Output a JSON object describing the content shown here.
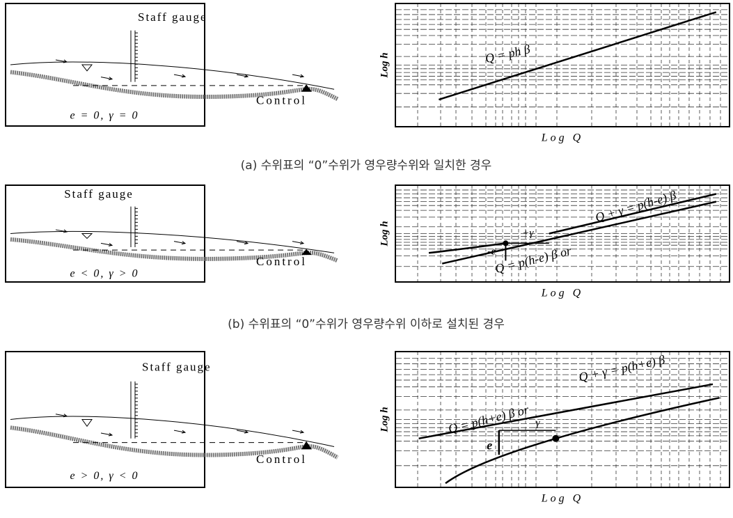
{
  "panels": [
    {
      "staff_label": "Staff gauge",
      "control_label": "Control",
      "condition": "e = 0,  γ = 0",
      "y_axis_label": "Log h",
      "x_axis_label": "Log Q",
      "formula": "Q = ph β",
      "caption": "(a) 수위표의 “0”수위가 영우량수위와 일치한 경우"
    },
    {
      "staff_label": "Staff gauge",
      "control_label": "Control",
      "condition": "e < 0,  γ > 0",
      "y_axis_label": "Log h",
      "x_axis_label": "Log Q",
      "formula_lower": "Q = p(h-e) β or",
      "formula_upper": "Q + γ = p(h-e) β",
      "e_label": "-e",
      "gamma_label": "+γ",
      "caption": "(b) 수위표의 “0”수위가 영우량수위 이하로 설치된 경우"
    },
    {
      "staff_label": "Staff gauge",
      "control_label": "Control",
      "condition": "e > 0,  γ < 0",
      "y_axis_label": "Log h",
      "x_axis_label": "Log Q",
      "formula_lower": "Q = p(h+e) β or",
      "formula_upper": "Q + γ = p(h+e) β",
      "e_label": "e",
      "gamma_label": "γ"
    }
  ]
}
